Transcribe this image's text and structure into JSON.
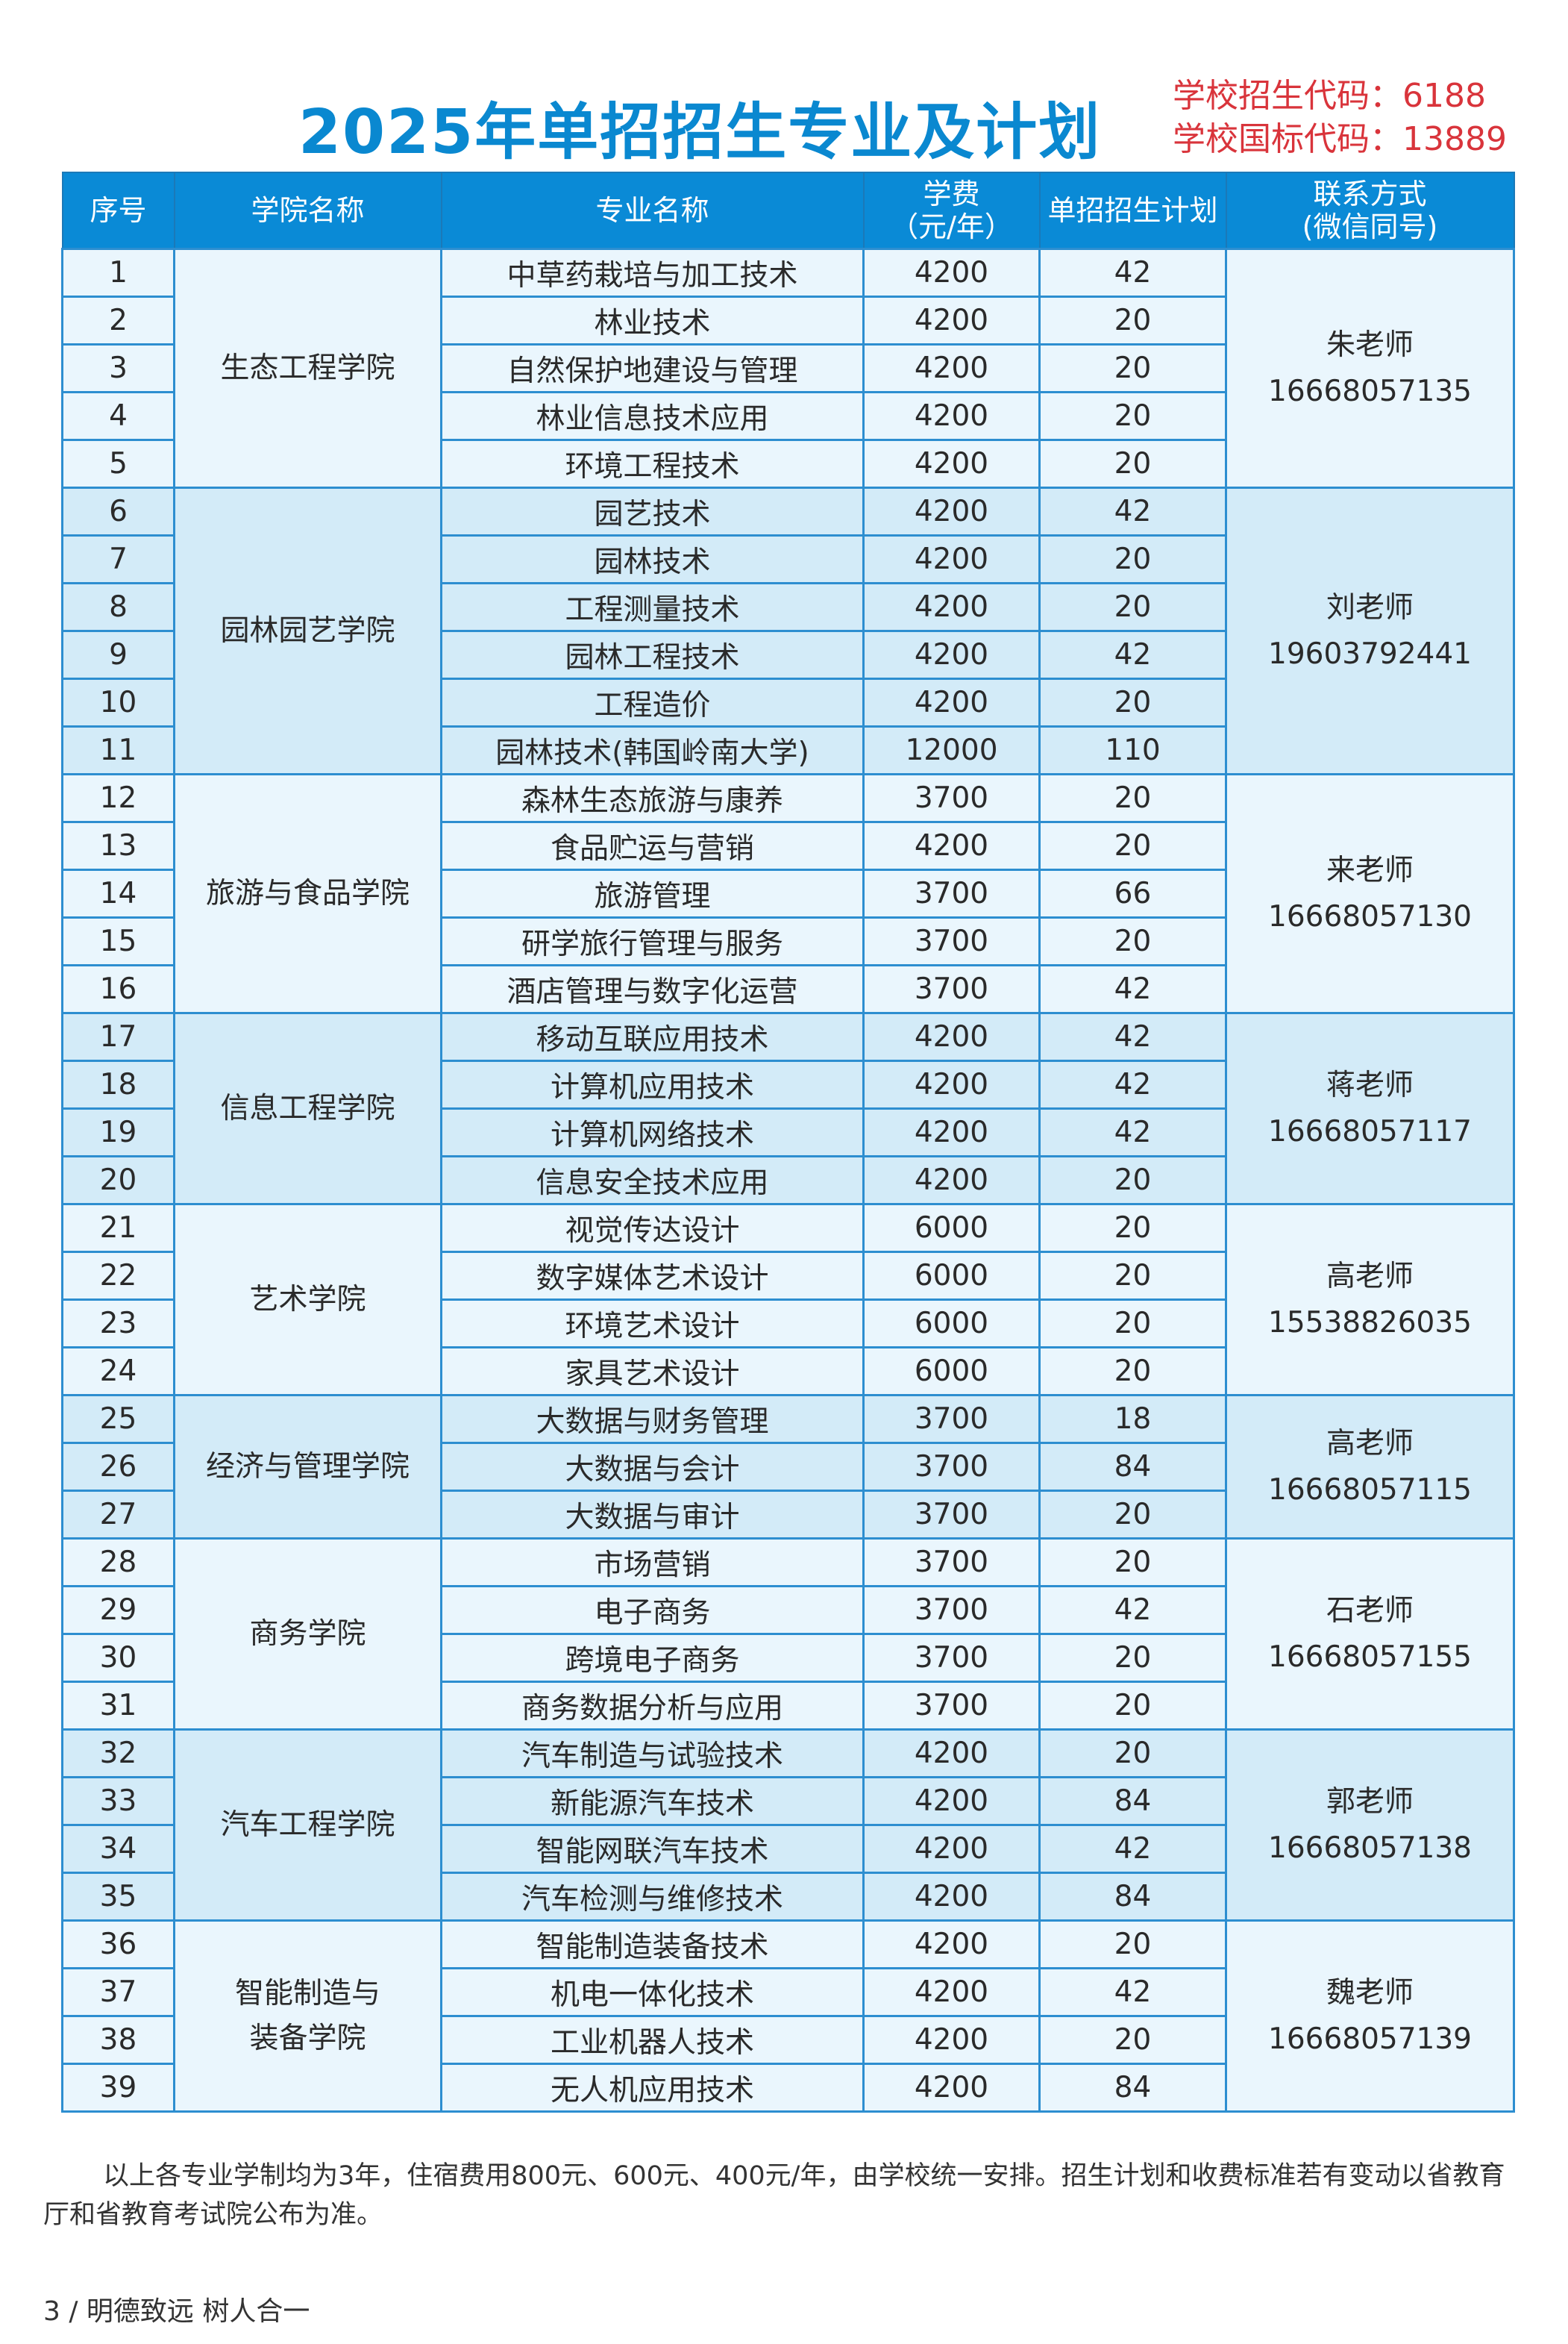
{
  "title": "2025年单招招生专业及计划",
  "codes": {
    "enroll_code": "学校招生代码：6188",
    "national_code": "学校国标代码：13889"
  },
  "colors": {
    "header_bg": "#0a8ad6",
    "title": "#0a88d0",
    "codes": "#d9343b",
    "row_light": "#eaf6fd",
    "row_dark": "#d3ebf8"
  },
  "table": {
    "headers": [
      "序号",
      "学院名称",
      "专业名称",
      "学费\n（元/年）",
      "单招招生计划",
      "联系方式\n(微信同号)"
    ],
    "groups": [
      {
        "college": "生态工程学院",
        "contact_name": "朱老师",
        "contact_phone": "16668057135",
        "rows": [
          [
            "1",
            "中草药栽培与加工技术",
            "4200",
            "42"
          ],
          [
            "2",
            "林业技术",
            "4200",
            "20"
          ],
          [
            "3",
            "自然保护地建设与管理",
            "4200",
            "20"
          ],
          [
            "4",
            "林业信息技术应用",
            "4200",
            "20"
          ],
          [
            "5",
            "环境工程技术",
            "4200",
            "20"
          ]
        ]
      },
      {
        "college": "园林园艺学院",
        "contact_name": "刘老师",
        "contact_phone": "19603792441",
        "rows": [
          [
            "6",
            "园艺技术",
            "4200",
            "42"
          ],
          [
            "7",
            "园林技术",
            "4200",
            "20"
          ],
          [
            "8",
            "工程测量技术",
            "4200",
            "20"
          ],
          [
            "9",
            "园林工程技术",
            "4200",
            "42"
          ],
          [
            "10",
            "工程造价",
            "4200",
            "20"
          ],
          [
            "11",
            "园林技术(韩国岭南大学)",
            "12000",
            "110"
          ]
        ]
      },
      {
        "college": "旅游与食品学院",
        "contact_name": "来老师",
        "contact_phone": "16668057130",
        "rows": [
          [
            "12",
            "森林生态旅游与康养",
            "3700",
            "20"
          ],
          [
            "13",
            "食品贮运与营销",
            "4200",
            "20"
          ],
          [
            "14",
            "旅游管理",
            "3700",
            "66"
          ],
          [
            "15",
            "研学旅行管理与服务",
            "3700",
            "20"
          ],
          [
            "16",
            "酒店管理与数字化运营",
            "3700",
            "42"
          ]
        ]
      },
      {
        "college": "信息工程学院",
        "contact_name": "蒋老师",
        "contact_phone": "16668057117",
        "rows": [
          [
            "17",
            "移动互联应用技术",
            "4200",
            "42"
          ],
          [
            "18",
            "计算机应用技术",
            "4200",
            "42"
          ],
          [
            "19",
            "计算机网络技术",
            "4200",
            "42"
          ],
          [
            "20",
            "信息安全技术应用",
            "4200",
            "20"
          ]
        ]
      },
      {
        "college": "艺术学院",
        "contact_name": "高老师",
        "contact_phone": "15538826035",
        "rows": [
          [
            "21",
            "视觉传达设计",
            "6000",
            "20"
          ],
          [
            "22",
            "数字媒体艺术设计",
            "6000",
            "20"
          ],
          [
            "23",
            "环境艺术设计",
            "6000",
            "20"
          ],
          [
            "24",
            "家具艺术设计",
            "6000",
            "20"
          ]
        ]
      },
      {
        "college": "经济与管理学院",
        "contact_name": "高老师",
        "contact_phone": "16668057115",
        "rows": [
          [
            "25",
            "大数据与财务管理",
            "3700",
            "18"
          ],
          [
            "26",
            "大数据与会计",
            "3700",
            "84"
          ],
          [
            "27",
            "大数据与审计",
            "3700",
            "20"
          ]
        ]
      },
      {
        "college": "商务学院",
        "contact_name": "石老师",
        "contact_phone": "16668057155",
        "rows": [
          [
            "28",
            "市场营销",
            "3700",
            "20"
          ],
          [
            "29",
            "电子商务",
            "3700",
            "42"
          ],
          [
            "30",
            "跨境电子商务",
            "3700",
            "20"
          ],
          [
            "31",
            "商务数据分析与应用",
            "3700",
            "20"
          ]
        ]
      },
      {
        "college": "汽车工程学院",
        "contact_name": "郭老师",
        "contact_phone": "16668057138",
        "rows": [
          [
            "32",
            "汽车制造与试验技术",
            "4200",
            "20"
          ],
          [
            "33",
            "新能源汽车技术",
            "4200",
            "84"
          ],
          [
            "34",
            "智能网联汽车技术",
            "4200",
            "42"
          ],
          [
            "35",
            "汽车检测与维修技术",
            "4200",
            "84"
          ]
        ]
      },
      {
        "college": "智能制造与\n装备学院",
        "contact_name": "魏老师",
        "contact_phone": "16668057139",
        "rows": [
          [
            "36",
            "智能制造装备技术",
            "4200",
            "20"
          ],
          [
            "37",
            "机电一体化技术",
            "4200",
            "42"
          ],
          [
            "38",
            "工业机器人技术",
            "4200",
            "20"
          ],
          [
            "39",
            "无人机应用技术",
            "4200",
            "84"
          ]
        ]
      }
    ]
  },
  "note": "以上各专业学制均为3年，住宿费用800元、600元、400元/年，由学校统一安排。招生计划和收费标准若有变动以省教育厅和省教育考试院公布为准。",
  "footer": "3 / 明德致远  树人合一"
}
